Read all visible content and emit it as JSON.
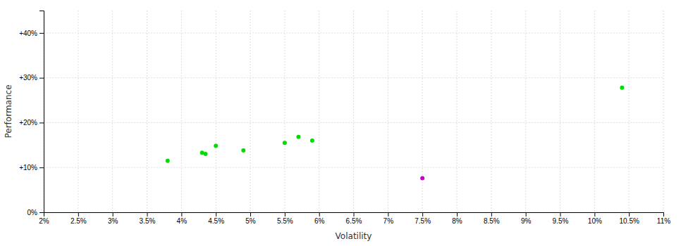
{
  "chart_data": {
    "type": "scatter",
    "xlabel": "Volatility",
    "ylabel": "Performance",
    "xlim": [
      0.02,
      0.11
    ],
    "ylim": [
      0.0,
      0.45
    ],
    "xticks": [
      {
        "value": 0.02,
        "label": "2%"
      },
      {
        "value": 0.025,
        "label": "2.5%"
      },
      {
        "value": 0.03,
        "label": "3%"
      },
      {
        "value": 0.035,
        "label": "3.5%"
      },
      {
        "value": 0.04,
        "label": "4%"
      },
      {
        "value": 0.045,
        "label": "4.5%"
      },
      {
        "value": 0.05,
        "label": "5%"
      },
      {
        "value": 0.055,
        "label": "5.5%"
      },
      {
        "value": 0.06,
        "label": "6%"
      },
      {
        "value": 0.065,
        "label": "6.5%"
      },
      {
        "value": 0.07,
        "label": "7%"
      },
      {
        "value": 0.075,
        "label": "7.5%"
      },
      {
        "value": 0.08,
        "label": "8%"
      },
      {
        "value": 0.085,
        "label": "8.5%"
      },
      {
        "value": 0.09,
        "label": "9%"
      },
      {
        "value": 0.095,
        "label": "9.5%"
      },
      {
        "value": 0.1,
        "label": "10%"
      },
      {
        "value": 0.105,
        "label": "10.5%"
      },
      {
        "value": 0.11,
        "label": "11%"
      }
    ],
    "yticks": [
      {
        "value": 0.0,
        "label": "0%"
      },
      {
        "value": 0.1,
        "label": "+10%"
      },
      {
        "value": 0.2,
        "label": "+20%"
      },
      {
        "value": 0.3,
        "label": "+30%"
      },
      {
        "value": 0.4,
        "label": "+40%"
      }
    ],
    "grid": true,
    "series": [
      {
        "color": "#00dd00",
        "x": [
          0.038,
          0.043,
          0.0435,
          0.045,
          0.049,
          0.055,
          0.057,
          0.059,
          0.104
        ],
        "values": [
          0.115,
          0.133,
          0.13,
          0.148,
          0.138,
          0.155,
          0.168,
          0.16,
          0.278
        ]
      },
      {
        "color": "#cc00cc",
        "x": [
          0.075
        ],
        "values": [
          0.076
        ]
      }
    ]
  }
}
